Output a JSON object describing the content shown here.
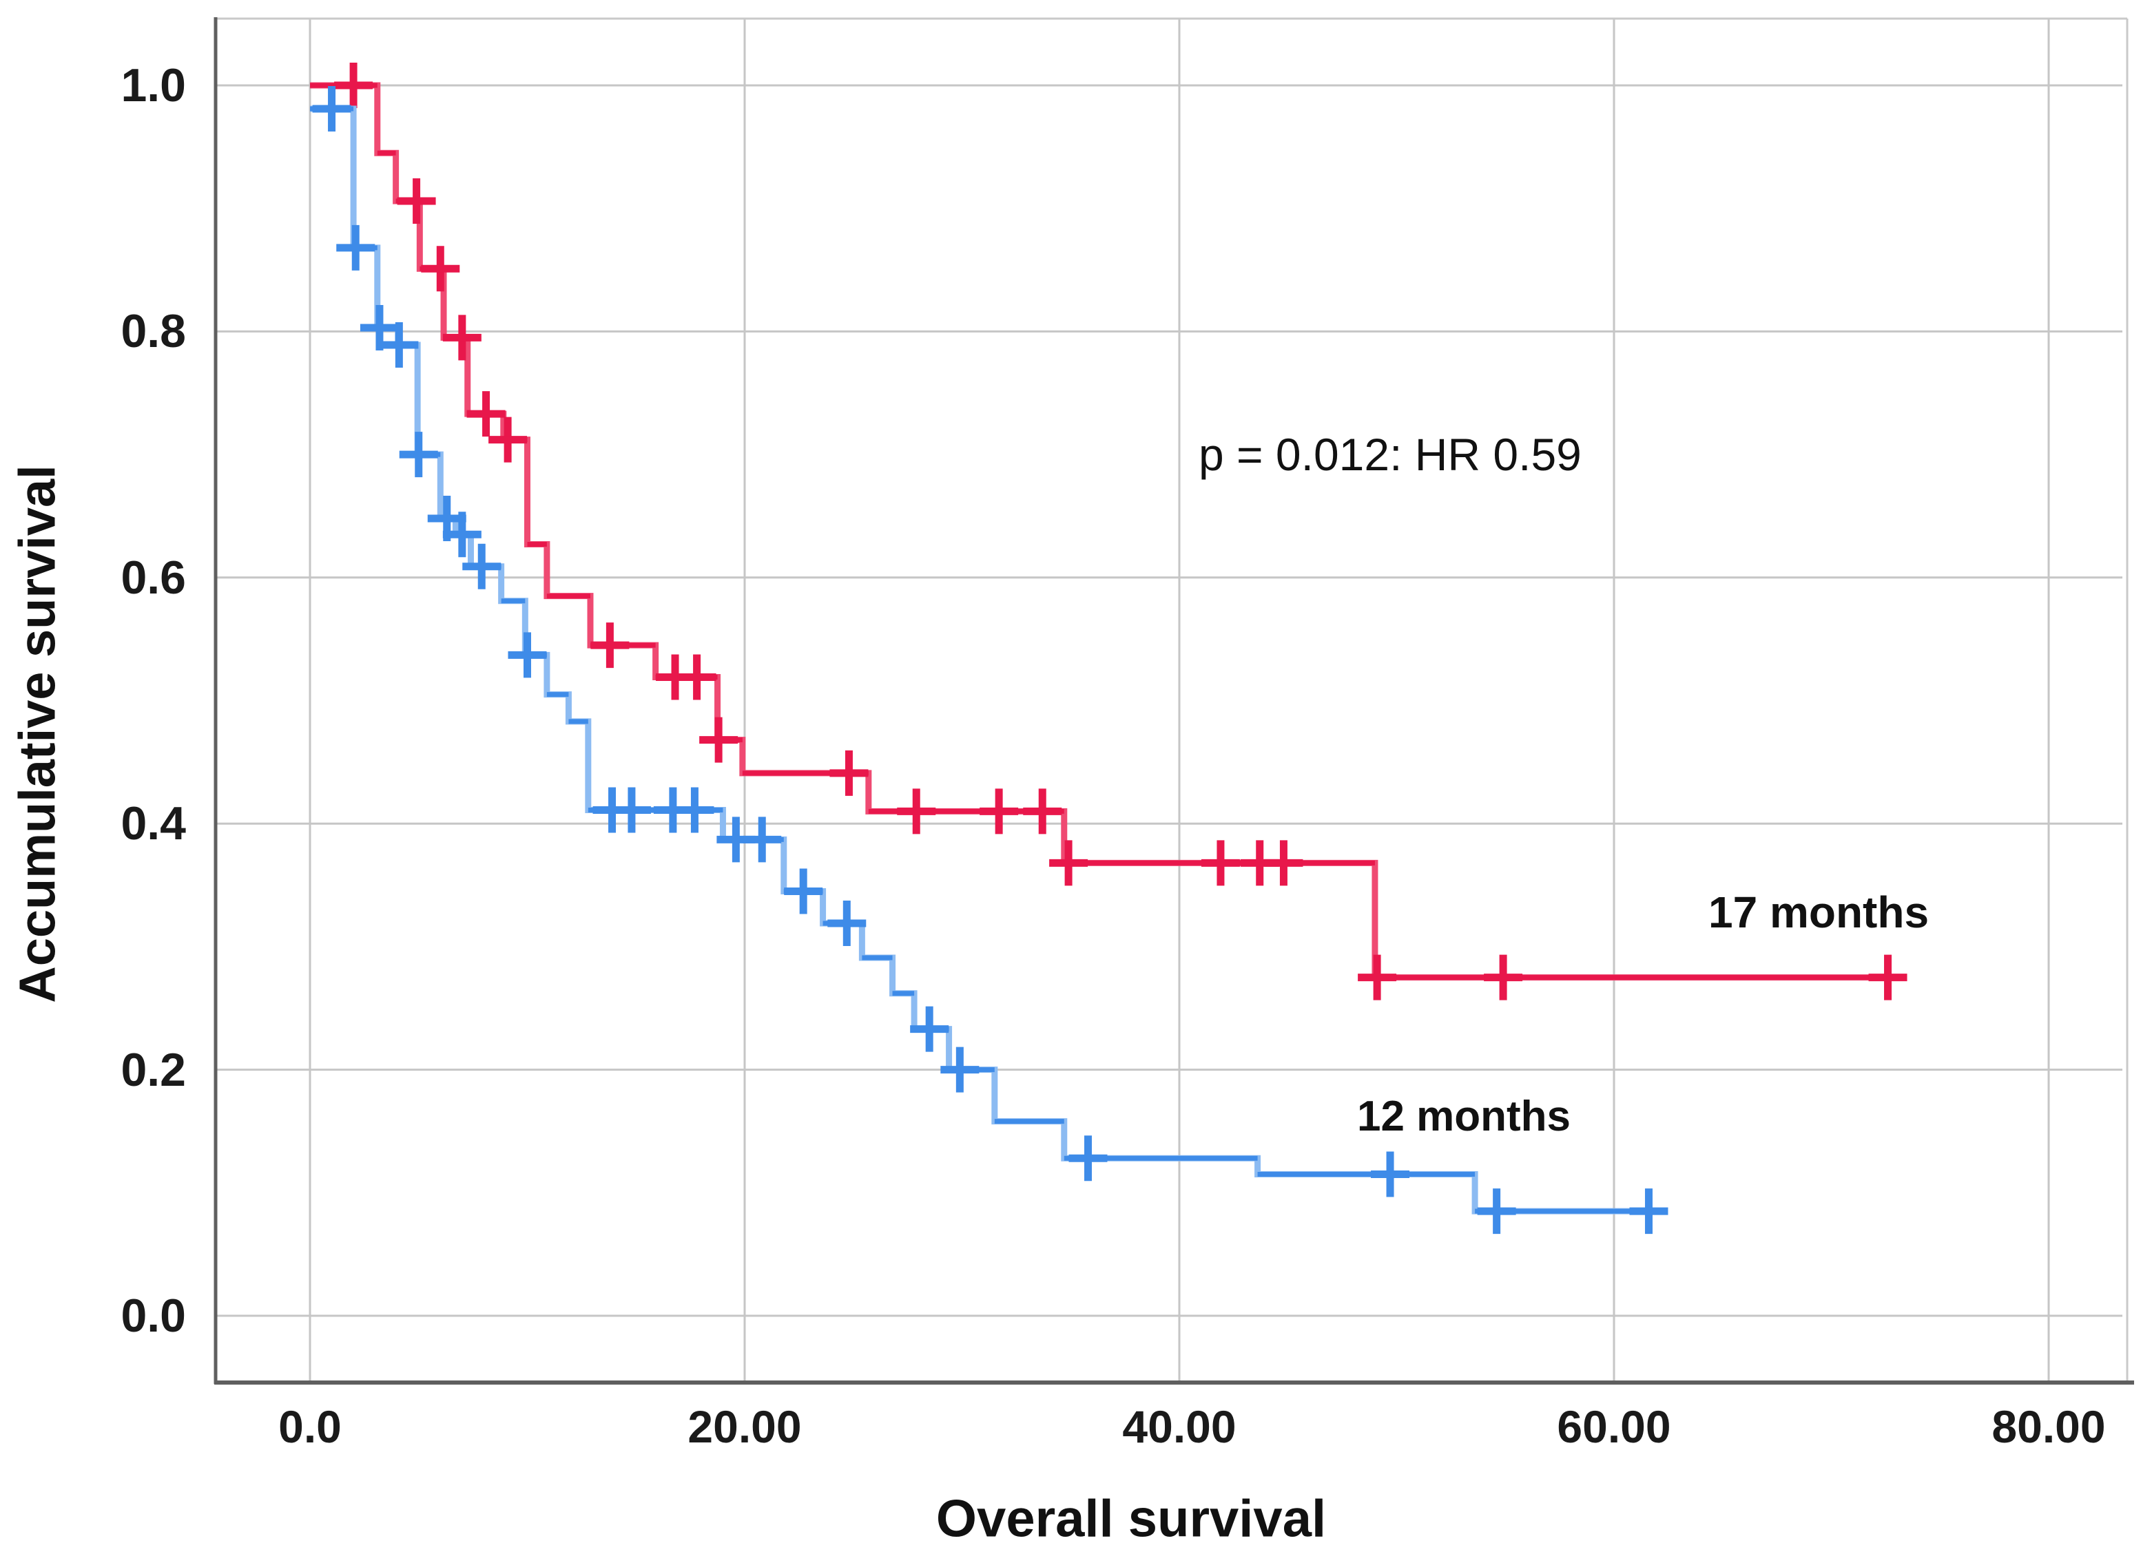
{
  "chart_data": {
    "type": "line",
    "subtype": "kaplan-meier-step",
    "title": "",
    "xlabel": "Overall survival",
    "ylabel": "Accumulative survival",
    "annotation": "p = 0.012: HR 0.59",
    "grid": true,
    "legend_position": "inline-labels",
    "xlim": [
      -4.3,
      83.7
    ],
    "ylim": [
      -0.055,
      1.055
    ],
    "x_ticks": [
      {
        "label": "0.0",
        "value": 0
      },
      {
        "label": "20.00",
        "value": 20
      },
      {
        "label": "40.00",
        "value": 40
      },
      {
        "label": "60.00",
        "value": 60
      },
      {
        "label": "80.00",
        "value": 80
      }
    ],
    "y_ticks": [
      {
        "label": "1.0",
        "value": 1.0
      },
      {
        "label": "0.8",
        "value": 0.8
      },
      {
        "label": "0.6",
        "value": 0.6
      },
      {
        "label": "0.4",
        "value": 0.4
      },
      {
        "label": "0.2",
        "value": 0.2
      },
      {
        "label": "0.0",
        "value": 0.0
      }
    ],
    "series": [
      {
        "name": "17 months",
        "color": "#e8174b",
        "vertical_color": "#ef4a72",
        "end_time": 72.8,
        "steps": [
          [
            0,
            1.0
          ],
          [
            3.1,
            0.945
          ],
          [
            3.95,
            0.906
          ],
          [
            5.05,
            0.851
          ],
          [
            6.15,
            0.795
          ],
          [
            7.25,
            0.733
          ],
          [
            8.9,
            0.712
          ],
          [
            10.0,
            0.627
          ],
          [
            10.9,
            0.585
          ],
          [
            12.9,
            0.545
          ],
          [
            15.9,
            0.519
          ],
          [
            18.75,
            0.468
          ],
          [
            19.9,
            0.441
          ],
          [
            25.7,
            0.41
          ],
          [
            34.7,
            0.368
          ],
          [
            49.0,
            0.275
          ]
        ],
        "censors": [
          [
            2.0,
            1.0
          ],
          [
            4.9,
            0.906
          ],
          [
            6.0,
            0.851
          ],
          [
            7.0,
            0.795
          ],
          [
            8.1,
            0.733
          ],
          [
            9.1,
            0.712
          ],
          [
            13.8,
            0.545
          ],
          [
            16.8,
            0.519
          ],
          [
            17.8,
            0.519
          ],
          [
            18.8,
            0.468
          ],
          [
            24.8,
            0.441
          ],
          [
            27.9,
            0.41
          ],
          [
            31.7,
            0.41
          ],
          [
            33.7,
            0.41
          ],
          [
            34.9,
            0.368
          ],
          [
            41.9,
            0.368
          ],
          [
            43.7,
            0.368
          ],
          [
            44.8,
            0.368
          ],
          [
            49.1,
            0.275
          ],
          [
            54.9,
            0.275
          ],
          [
            72.6,
            0.275
          ]
        ]
      },
      {
        "name": "12 months",
        "color": "#3e8be8",
        "vertical_color": "#8cbbf2",
        "end_time": 61.7,
        "steps": [
          [
            0,
            0.981
          ],
          [
            2.0,
            0.868
          ],
          [
            3.1,
            0.803
          ],
          [
            4.05,
            0.789
          ],
          [
            4.95,
            0.7
          ],
          [
            6.0,
            0.648
          ],
          [
            6.7,
            0.635
          ],
          [
            7.4,
            0.609
          ],
          [
            8.8,
            0.581
          ],
          [
            9.9,
            0.537
          ],
          [
            10.9,
            0.505
          ],
          [
            11.9,
            0.483
          ],
          [
            12.8,
            0.411
          ],
          [
            19.0,
            0.387
          ],
          [
            21.8,
            0.345
          ],
          [
            23.6,
            0.319
          ],
          [
            25.4,
            0.291
          ],
          [
            26.8,
            0.262
          ],
          [
            27.8,
            0.233
          ],
          [
            29.4,
            0.2
          ],
          [
            31.5,
            0.158
          ],
          [
            34.7,
            0.128
          ],
          [
            43.6,
            0.115
          ],
          [
            53.6,
            0.085
          ]
        ],
        "censors": [
          [
            1.0,
            0.981
          ],
          [
            2.1,
            0.868
          ],
          [
            3.2,
            0.803
          ],
          [
            4.1,
            0.789
          ],
          [
            5.0,
            0.7
          ],
          [
            6.3,
            0.648
          ],
          [
            7.0,
            0.635
          ],
          [
            7.9,
            0.609
          ],
          [
            10.0,
            0.537
          ],
          [
            13.9,
            0.411
          ],
          [
            14.8,
            0.411
          ],
          [
            16.7,
            0.411
          ],
          [
            17.7,
            0.411
          ],
          [
            19.6,
            0.387
          ],
          [
            20.8,
            0.387
          ],
          [
            22.7,
            0.345
          ],
          [
            24.7,
            0.319
          ],
          [
            28.5,
            0.233
          ],
          [
            29.9,
            0.2
          ],
          [
            35.8,
            0.128
          ],
          [
            49.7,
            0.115
          ],
          [
            54.6,
            0.085
          ],
          [
            61.6,
            0.085
          ]
        ]
      }
    ],
    "colors": {
      "gridline": "#c6c6c6",
      "axis_dark": "#5f5f5f",
      "frame_light": "#c9c9c9",
      "text": "#111111"
    }
  }
}
